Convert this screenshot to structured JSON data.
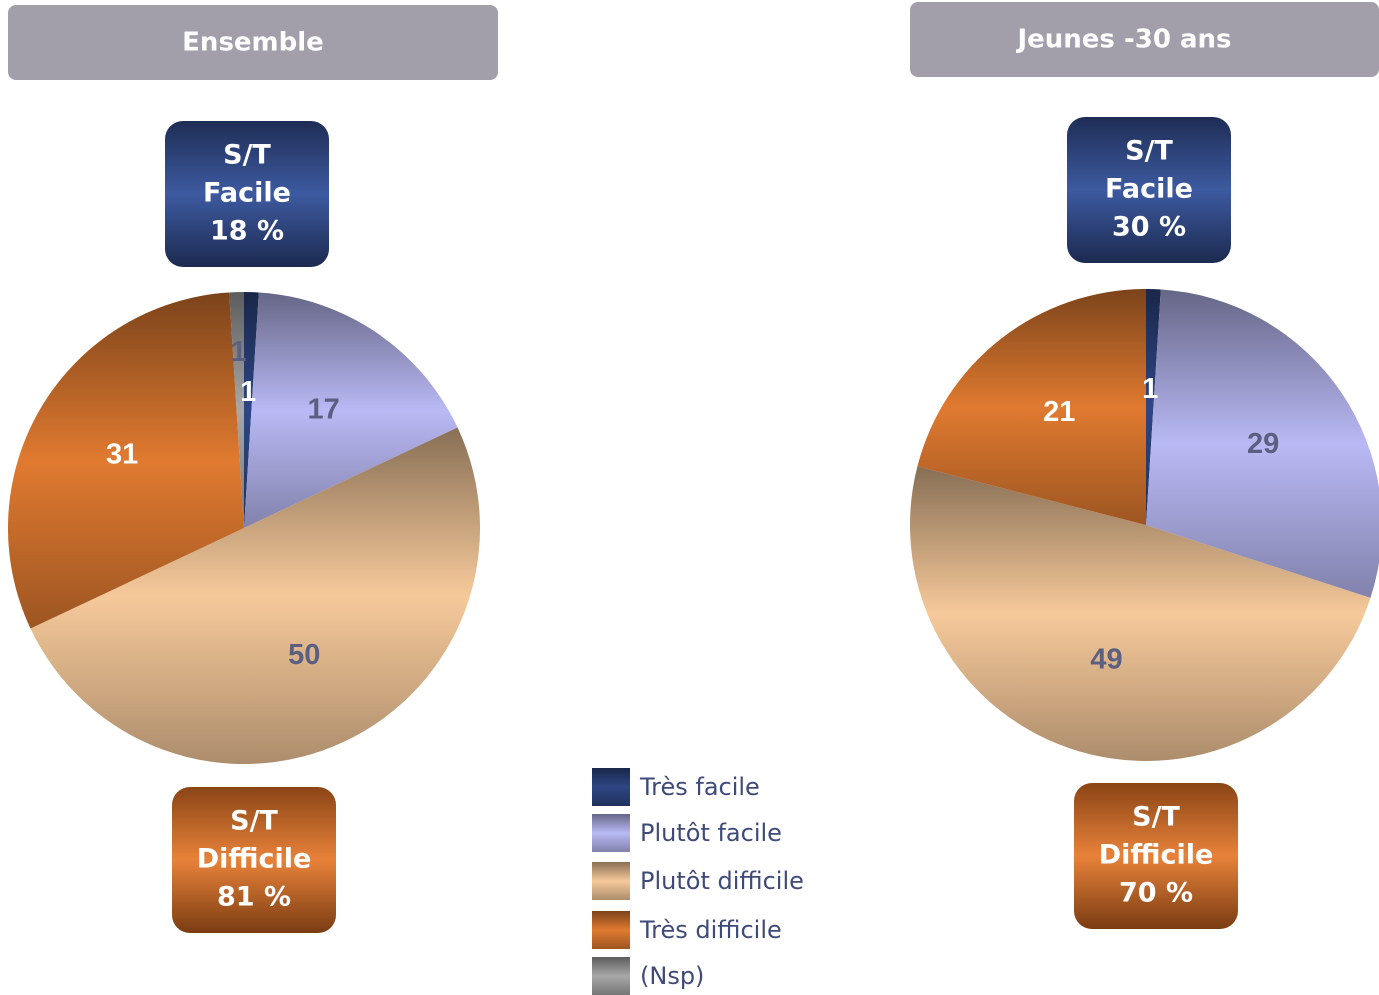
{
  "legend": {
    "names": [
      "Très facile",
      "Plutôt facile",
      "Plutôt difficile",
      "Très difficile",
      "(Nsp)"
    ],
    "colors": [
      "#2e4684",
      "#b9b9f5",
      "#f6c99a",
      "#e07a30",
      "#a8a8a8"
    ]
  },
  "chart_data": [
    {
      "type": "pie",
      "title": "Ensemble",
      "values": [
        1,
        17,
        50,
        31,
        1
      ],
      "summary": [
        {
          "lines": [
            "S/T",
            "Facile"
          ],
          "value": 18,
          "value_label": "18 %"
        },
        {
          "lines": [
            "S/T",
            "Difficile"
          ],
          "value": 81,
          "value_label": "81 %"
        }
      ]
    },
    {
      "type": "pie",
      "title": "Jeunes -30 ans",
      "values": [
        1,
        29,
        49,
        21,
        null
      ],
      "summary": [
        {
          "lines": [
            "S/T",
            "Facile"
          ],
          "value": 30,
          "value_label": "30 %"
        },
        {
          "lines": [
            "S/T",
            "Difficile"
          ],
          "value": 70,
          "value_label": "70 %"
        }
      ]
    }
  ]
}
